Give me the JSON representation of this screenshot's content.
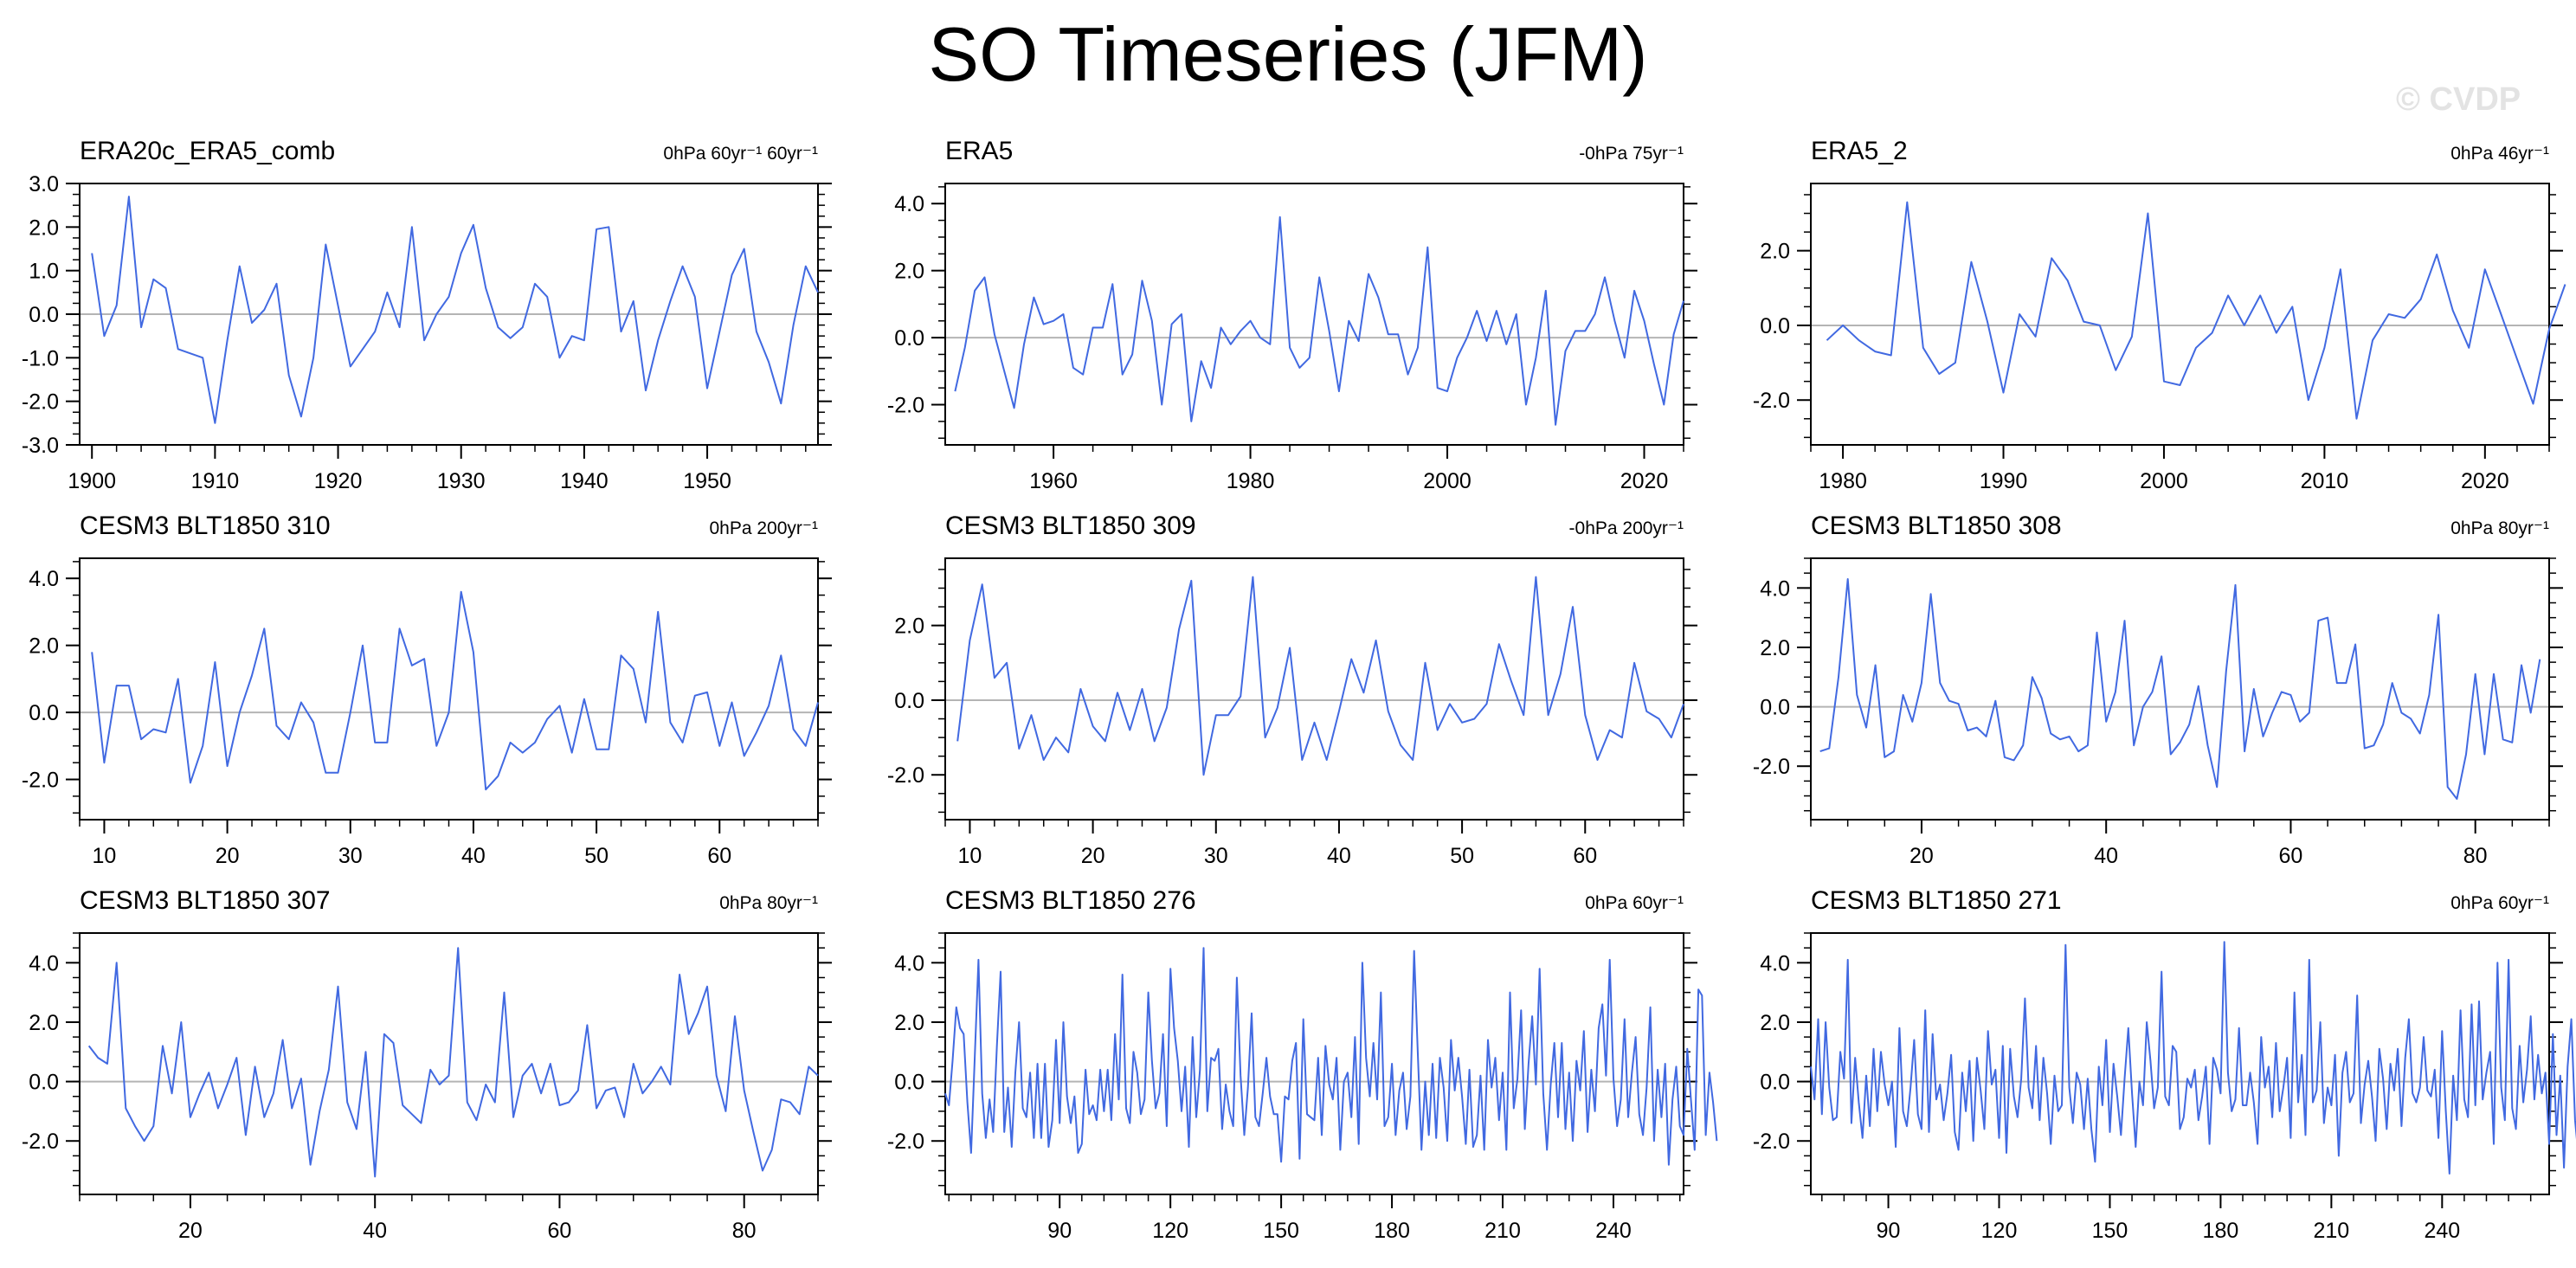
{
  "title": "SO Timeseries (JFM)",
  "watermark": "© CVDP",
  "colors": {
    "line": "#4169e1",
    "zero": "#b4b4b4",
    "axis": "#000000"
  },
  "chart_data": [
    {
      "type": "line",
      "title": "ERA20c_ERA5_comb",
      "trend_label": "0hPa 60yr⁻¹ 60yr⁻¹",
      "xlim": [
        1899,
        1959
      ],
      "xticks": [
        1900,
        1910,
        1920,
        1930,
        1940,
        1950
      ],
      "ylim": [
        -3,
        3
      ],
      "yticks": [
        3,
        2,
        1,
        0,
        -1,
        -2,
        -3
      ],
      "ytick_labels": [
        "3.0",
        "2.0",
        "1.0",
        "0.0",
        "-1.0",
        "-2.0",
        "-3.0"
      ],
      "x_start": 1900,
      "values": [
        1.4,
        -0.5,
        0.2,
        2.7,
        -0.3,
        0.8,
        0.6,
        -0.8,
        -0.9,
        -1.0,
        -2.5,
        -0.6,
        1.1,
        -0.2,
        0.1,
        0.7,
        -1.4,
        -2.35,
        -1.0,
        1.6,
        0.2,
        -1.2,
        -0.8,
        -0.4,
        0.5,
        -0.3,
        2.0,
        -0.6,
        0.0,
        0.4,
        1.4,
        2.05,
        0.6,
        -0.3,
        -0.55,
        -0.3,
        0.7,
        0.4,
        -1.0,
        -0.5,
        -0.6,
        1.95,
        2.0,
        -0.4,
        0.3,
        -1.75,
        -0.6,
        0.3,
        1.1,
        0.4,
        -1.7,
        -0.4,
        0.9,
        1.5,
        -0.4,
        -1.1,
        -2.05,
        -0.25,
        1.1,
        0.5
      ]
    },
    {
      "type": "line",
      "title": "ERA5",
      "trend_label": "-0hPa 75yr⁻¹",
      "xlim": [
        1949,
        2024
      ],
      "xticks": [
        1960,
        1980,
        2000,
        2020
      ],
      "ylim": [
        -3.2,
        4.6
      ],
      "yticks": [
        4,
        2,
        0,
        -2
      ],
      "ytick_labels": [
        "4.0",
        "2.0",
        "0.0",
        "-2.0"
      ],
      "x_start": 1950,
      "values": [
        -1.6,
        -0.3,
        1.4,
        1.8,
        0.1,
        -1.0,
        -2.1,
        -0.2,
        1.2,
        0.4,
        0.5,
        0.7,
        -0.9,
        -1.1,
        0.3,
        0.3,
        1.6,
        -1.1,
        -0.5,
        1.7,
        0.5,
        -2.0,
        0.4,
        0.7,
        -2.5,
        -0.7,
        -1.5,
        0.3,
        -0.2,
        0.2,
        0.5,
        0.0,
        -0.2,
        3.6,
        -0.3,
        -0.9,
        -0.6,
        1.8,
        0.2,
        -1.6,
        0.5,
        -0.1,
        1.9,
        1.2,
        0.1,
        0.1,
        -1.1,
        -0.3,
        2.7,
        -1.5,
        -1.6,
        -0.6,
        0.0,
        0.8,
        -0.1,
        0.8,
        -0.2,
        0.7,
        -2.0,
        -0.6,
        1.4,
        -2.6,
        -0.4,
        0.2,
        0.2,
        0.7,
        1.8,
        0.5,
        -0.6,
        1.4,
        0.5,
        -0.8,
        -2.0,
        0.1,
        1.1
      ]
    },
    {
      "type": "line",
      "title": "ERA5_2",
      "trend_label": "0hPa 46yr⁻¹",
      "xlim": [
        1978,
        2024
      ],
      "xticks": [
        1980,
        1990,
        2000,
        2010,
        2020
      ],
      "ylim": [
        -3.2,
        3.8
      ],
      "yticks": [
        2,
        0,
        -2
      ],
      "ytick_labels": [
        "2.0",
        "0.0",
        "-2.0"
      ],
      "x_start": 1979,
      "values": [
        -0.4,
        0.0,
        -0.4,
        -0.7,
        -0.8,
        3.3,
        -0.6,
        -1.3,
        -1.0,
        1.7,
        0.1,
        -1.8,
        0.3,
        -0.3,
        1.8,
        1.2,
        0.1,
        0.0,
        -1.2,
        -0.3,
        3.0,
        -1.5,
        -1.6,
        -0.6,
        -0.2,
        0.8,
        0.0,
        0.8,
        -0.2,
        0.5,
        -2.0,
        -0.6,
        1.5,
        -2.5,
        -0.4,
        0.3,
        0.2,
        0.7,
        1.9,
        0.4,
        -0.6,
        1.5,
        0.3,
        -0.9,
        -2.1,
        -0.1,
        1.1
      ]
    },
    {
      "type": "line",
      "title": "CESM3 BLT1850 310",
      "trend_label": "0hPa 200yr⁻¹",
      "xlim": [
        8,
        68
      ],
      "xticks": [
        10,
        20,
        30,
        40,
        50,
        60
      ],
      "ylim": [
        -3.2,
        4.6
      ],
      "yticks": [
        4,
        2,
        0,
        -2
      ],
      "ytick_labels": [
        "4.0",
        "2.0",
        "0.0",
        "-2.0"
      ],
      "x_start": 9,
      "values": [
        1.8,
        -1.5,
        0.8,
        0.8,
        -0.8,
        -0.5,
        -0.6,
        1.0,
        -2.1,
        -1.0,
        1.5,
        -1.6,
        0.0,
        1.1,
        2.5,
        -0.4,
        -0.8,
        0.3,
        -0.3,
        -1.8,
        -1.8,
        0.0,
        2.0,
        -0.9,
        -0.9,
        2.5,
        1.4,
        1.6,
        -1.0,
        0.0,
        3.6,
        1.8,
        -2.3,
        -1.9,
        -0.9,
        -1.2,
        -0.9,
        -0.2,
        0.2,
        -1.2,
        0.4,
        -1.1,
        -1.1,
        1.7,
        1.3,
        -0.3,
        3.0,
        -0.3,
        -0.9,
        0.5,
        0.6,
        -1.0,
        0.3,
        -1.3,
        -0.6,
        0.2,
        1.7,
        -0.5,
        -1.0,
        0.3
      ]
    },
    {
      "type": "line",
      "title": "CESM3 BLT1850 309",
      "trend_label": "-0hPa 200yr⁻¹",
      "xlim": [
        8,
        68
      ],
      "xticks": [
        10,
        20,
        30,
        40,
        50,
        60
      ],
      "ylim": [
        -3.2,
        3.8
      ],
      "yticks": [
        2,
        0,
        -2
      ],
      "ytick_labels": [
        "2.0",
        "0.0",
        "-2.0"
      ],
      "x_start": 9,
      "values": [
        -1.1,
        1.6,
        3.1,
        0.6,
        1.0,
        -1.3,
        -0.4,
        -1.6,
        -1.0,
        -1.4,
        0.3,
        -0.7,
        -1.1,
        0.2,
        -0.8,
        0.3,
        -1.1,
        -0.2,
        1.9,
        3.2,
        -2.0,
        -0.4,
        -0.4,
        0.1,
        3.3,
        -1.0,
        -0.2,
        1.4,
        -1.6,
        -0.6,
        -1.6,
        -0.3,
        1.1,
        0.2,
        1.6,
        -0.3,
        -1.2,
        -1.6,
        1.0,
        -0.8,
        -0.1,
        -0.6,
        -0.5,
        -0.1,
        1.5,
        0.5,
        -0.4,
        3.3,
        -0.4,
        0.7,
        2.5,
        -0.4,
        -1.6,
        -0.8,
        -1.0,
        1.0,
        -0.3,
        -0.5,
        -1.0,
        -0.1
      ]
    },
    {
      "type": "line",
      "title": "CESM3 BLT1850 308",
      "trend_label": "0hPa 80yr⁻¹",
      "xlim": [
        8,
        88
      ],
      "xticks": [
        20,
        40,
        60,
        80
      ],
      "ylim": [
        -3.8,
        5.0
      ],
      "yticks": [
        4,
        2,
        0,
        -2
      ],
      "ytick_labels": [
        "4.0",
        "2.0",
        "0.0",
        "-2.0"
      ],
      "x_start": 9,
      "values": [
        -1.5,
        -1.4,
        1.0,
        4.3,
        0.4,
        -0.7,
        1.4,
        -1.7,
        -1.5,
        0.4,
        -0.5,
        0.8,
        3.8,
        0.8,
        0.2,
        0.1,
        -0.8,
        -0.7,
        -1.0,
        0.2,
        -1.7,
        -1.8,
        -1.3,
        1.0,
        0.3,
        -0.9,
        -1.1,
        -1.0,
        -1.5,
        -1.3,
        2.5,
        -0.5,
        0.5,
        2.9,
        -1.3,
        0.0,
        0.5,
        1.7,
        -1.6,
        -1.2,
        -0.6,
        0.7,
        -1.3,
        -2.7,
        1.2,
        4.1,
        -1.5,
        0.6,
        -1.0,
        -0.2,
        0.5,
        0.4,
        -0.5,
        -0.2,
        2.9,
        3.0,
        0.8,
        0.8,
        2.1,
        -1.4,
        -1.3,
        -0.6,
        0.8,
        -0.2,
        -0.4,
        -0.9,
        0.4,
        3.1,
        -2.7,
        -3.1,
        -1.6,
        1.1,
        -1.6,
        1.1,
        -1.1,
        -1.2,
        1.4,
        -0.2,
        1.6
      ]
    },
    {
      "type": "line",
      "title": "CESM3 BLT1850 307",
      "trend_label": "0hPa 80yr⁻¹",
      "xlim": [
        8,
        88
      ],
      "xticks": [
        20,
        40,
        60,
        80
      ],
      "ylim": [
        -3.8,
        5.0
      ],
      "yticks": [
        4,
        2,
        0,
        -2
      ],
      "ytick_labels": [
        "4.0",
        "2.0",
        "0.0",
        "-2.0"
      ],
      "x_start": 9,
      "values": [
        1.2,
        0.8,
        0.6,
        4.0,
        -0.9,
        -1.5,
        -2.0,
        -1.5,
        1.2,
        -0.4,
        2.0,
        -1.2,
        -0.4,
        0.3,
        -0.9,
        -0.1,
        0.8,
        -1.8,
        0.5,
        -1.2,
        -0.4,
        1.4,
        -0.9,
        0.1,
        -2.8,
        -1.0,
        0.4,
        3.2,
        -0.7,
        -1.6,
        1.0,
        -3.2,
        1.6,
        1.3,
        -0.8,
        -1.1,
        -1.4,
        0.4,
        -0.1,
        0.2,
        4.5,
        -0.7,
        -1.3,
        -0.1,
        -0.7,
        3.0,
        -1.2,
        0.2,
        0.6,
        -0.4,
        0.6,
        -0.8,
        -0.7,
        -0.3,
        1.9,
        -0.9,
        -0.3,
        -0.2,
        -1.2,
        0.6,
        -0.4,
        0.0,
        0.5,
        -0.1,
        3.6,
        1.6,
        2.3,
        3.2,
        0.2,
        -1.0,
        2.2,
        -0.3,
        -1.7,
        -3.0,
        -2.3,
        -0.6,
        -0.7,
        -1.1,
        0.5,
        0.2
      ]
    },
    {
      "type": "line",
      "title": "CESM3 BLT1850 276",
      "trend_label": "0hPa 60yr⁻¹",
      "xlim": [
        59,
        259
      ],
      "xticks": [
        90,
        120,
        150,
        180,
        210,
        240
      ],
      "ylim": [
        -3.8,
        5.0
      ],
      "yticks": [
        4,
        2,
        0,
        -2
      ],
      "ytick_labels": [
        "4.0",
        "2.0",
        "0.0",
        "-2.0"
      ],
      "x_start": 59,
      "values": [
        -0.4,
        -0.8,
        0.7,
        2.5,
        1.8,
        1.6,
        -0.7,
        -2.4,
        0.8,
        4.1,
        -0.4,
        -1.9,
        -0.6,
        -1.7,
        1.2,
        3.7,
        -1.7,
        -0.2,
        -2.2,
        0.3,
        2.0,
        -0.9,
        -1.2,
        0.3,
        -1.9,
        0.6,
        -1.9,
        0.6,
        -2.2,
        -1.3,
        1.4,
        -1.4,
        2.0,
        -0.5,
        -1.4,
        -0.5,
        -2.4,
        -2.1,
        0.4,
        -1.1,
        -0.8,
        -1.3,
        0.4,
        -1.0,
        0.4,
        -1.3,
        1.6,
        -0.6,
        3.6,
        -0.9,
        -1.4,
        1.0,
        0.3,
        -1.1,
        -0.6,
        3.0,
        0.7,
        -0.9,
        -0.4,
        1.6,
        -1.5,
        3.8,
        1.8,
        0.7,
        -1.0,
        0.5,
        -2.2,
        1.5,
        -1.2,
        0.4,
        4.5,
        -1.0,
        0.8,
        0.7,
        1.1,
        -1.6,
        -0.1,
        -1.0,
        -1.5,
        3.5,
        0.2,
        -1.8,
        -0.2,
        2.3,
        -1.2,
        -1.5,
        -0.4,
        0.8,
        -0.5,
        -1.1,
        -1.1,
        -2.7,
        -0.5,
        -0.6,
        0.7,
        1.3,
        -2.6,
        2.1,
        -1.1,
        -1.2,
        -1.3,
        0.8,
        -1.8,
        1.2,
        -0.1,
        -0.6,
        0.8,
        -2.3,
        0.0,
        0.3,
        -1.2,
        1.5,
        -2.1,
        4.0,
        0.8,
        -0.5,
        1.3,
        -0.6,
        3.0,
        -1.5,
        -1.2,
        0.6,
        -1.8,
        -0.3,
        0.3,
        -1.6,
        -0.5,
        4.4,
        1.0,
        -2.3,
        0.0,
        -1.8,
        0.6,
        -1.9,
        0.8,
        -0.2,
        -2.0,
        1.4,
        -0.3,
        0.8,
        -0.5,
        -2.1,
        0.4,
        -2.2,
        -1.8,
        0.2,
        -2.3,
        1.4,
        -0.2,
        0.8,
        -1.3,
        0.3,
        -2.3,
        3.0,
        -0.9,
        0.1,
        2.4,
        -1.6,
        0.6,
        2.2,
        -0.1,
        3.8,
        -0.4,
        -2.3,
        -0.1,
        1.3,
        -1.2,
        1.3,
        -1.6,
        0.3,
        -2.0,
        0.7,
        -0.3,
        1.7,
        -1.7,
        0.4,
        -1.0,
        1.8,
        2.6,
        0.2,
        4.1,
        0.1,
        -1.5,
        -0.6,
        2.1,
        -1.2,
        0.3,
        1.5,
        -1.1,
        -1.8,
        -0.2,
        2.5,
        -2.0,
        0.4,
        -1.2,
        0.6,
        -2.8,
        -0.6,
        0.5,
        -1.5,
        -1.8,
        1.1,
        -0.6,
        -2.3,
        3.1,
        2.9,
        -1.8,
        0.3,
        -0.7,
        -2.0
      ]
    },
    {
      "type": "line",
      "title": "CESM3 BLT1850 271",
      "trend_label": "0hPa 60yr⁻¹",
      "xlim": [
        69,
        269
      ],
      "xticks": [
        90,
        120,
        150,
        180,
        210,
        240
      ],
      "ylim": [
        -3.8,
        5.0
      ],
      "yticks": [
        4,
        2,
        0,
        -2
      ],
      "ytick_labels": [
        "4.0",
        "2.0",
        "0.0",
        "-2.0"
      ],
      "x_start": 69,
      "values": [
        0.5,
        -0.6,
        2.1,
        -1.1,
        2.0,
        -0.2,
        -1.3,
        -1.2,
        1.0,
        0.1,
        4.1,
        -1.4,
        0.8,
        -0.7,
        -1.9,
        0.2,
        -1.5,
        1.1,
        -1.0,
        1.0,
        -0.1,
        -0.8,
        0.0,
        -2.2,
        1.8,
        -1.0,
        -1.5,
        -0.2,
        1.4,
        -1.1,
        -1.6,
        2.4,
        -1.7,
        1.6,
        -0.6,
        -0.1,
        -1.3,
        -0.4,
        0.9,
        -1.7,
        -2.3,
        0.3,
        -1.0,
        0.7,
        -2.0,
        0.8,
        -0.3,
        -1.6,
        1.7,
        -0.1,
        0.4,
        -1.9,
        1.2,
        -2.4,
        1.1,
        -0.5,
        -1.2,
        0.1,
        2.8,
        -0.2,
        -0.9,
        1.2,
        -1.3,
        0.8,
        -0.4,
        -2.1,
        0.2,
        -1.0,
        -0.8,
        4.6,
        -0.2,
        -1.4,
        0.3,
        -0.1,
        -1.6,
        0.1,
        -1.6,
        -2.7,
        0.5,
        -0.8,
        1.4,
        -1.7,
        0.6,
        -0.5,
        -1.8,
        0.1,
        1.8,
        -0.4,
        -2.2,
        0.0,
        -0.8,
        2.0,
        0.7,
        -0.9,
        -0.2,
        3.7,
        -0.5,
        -0.8,
        1.2,
        1.0,
        -1.6,
        -1.2,
        0.1,
        -0.2,
        0.4,
        -1.3,
        -0.5,
        0.5,
        -2.1,
        0.8,
        0.4,
        -0.4,
        4.7,
        0.3,
        -1.0,
        -0.6,
        1.8,
        -0.8,
        -0.8,
        0.3,
        -0.7,
        -2.1,
        1.5,
        -0.2,
        0.5,
        -1.2,
        1.3,
        -1.0,
        -0.2,
        0.8,
        -1.9,
        3.0,
        -0.7,
        0.9,
        -1.8,
        4.1,
        -0.7,
        -0.3,
        2.0,
        -1.4,
        -0.2,
        -0.8,
        0.9,
        -2.5,
        0.3,
        1.0,
        -0.7,
        -0.4,
        2.9,
        -1.4,
        -0.1,
        0.7,
        -0.5,
        -2.0,
        1.1,
        0.1,
        -1.6,
        0.6,
        -0.3,
        1.1,
        -1.5,
        0.8,
        2.1,
        -0.4,
        -0.7,
        -0.2,
        1.5,
        -0.3,
        -0.5,
        0.4,
        -1.9,
        1.7,
        -1.0,
        -3.1,
        0.2,
        -1.3,
        2.4,
        -0.6,
        -1.2,
        2.6,
        -0.8,
        2.7,
        -0.6,
        0.3,
        1.0,
        -2.1,
        4.0,
        -0.2,
        -1.3,
        4.1,
        -0.9,
        -1.6,
        1.2,
        -0.7,
        0.4,
        2.2,
        -0.6,
        0.9,
        -0.4,
        0.3,
        -2.1,
        1.6,
        -1.8,
        0.2,
        -2.9,
        0.5,
        2.1,
        -1.3,
        -2.6,
        0.7,
        0.4,
        -1.0,
        2.2,
        -0.5,
        0.6,
        -0.1,
        -1.2,
        -2.0,
        0.8
      ]
    }
  ]
}
